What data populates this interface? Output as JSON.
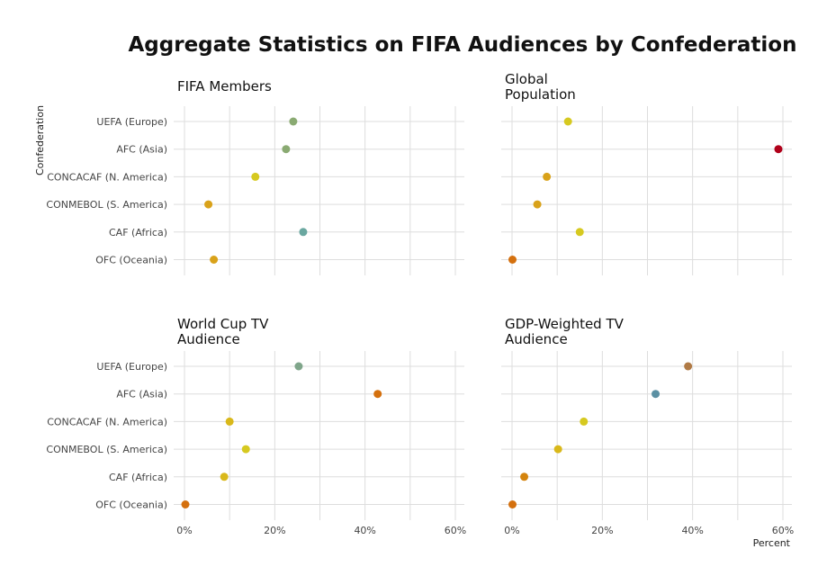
{
  "chart_data": {
    "type": "scatter",
    "title": "Aggregate Statistics on FIFA Audiences by Confederation",
    "ylabel": "Confederation",
    "xlabel": "Percent",
    "categories": [
      "UEFA (Europe)",
      "AFC (Asia)",
      "CONCACAF (N. America)",
      "CONMEBOL (S. America)",
      "CAF (Africa)",
      "OFC (Oceania)"
    ],
    "xlim": [
      0,
      60
    ],
    "x_ticks": [
      "0%",
      "20%",
      "40%",
      "60%"
    ],
    "x_tick_values": [
      0,
      20,
      40,
      60
    ],
    "grid": true,
    "color_scale": {
      "low": "#d4700e",
      "mid": "#d9c80e",
      "high": "#6aa7a0",
      "max": "#b0001a"
    },
    "facets": [
      {
        "name": "FIFA Members",
        "values": [
          24.1,
          22.5,
          15.7,
          5.3,
          26.3,
          6.5
        ],
        "colors": [
          "#8aaa72",
          "#8aaa72",
          "#d6c920",
          "#d9a21a",
          "#6aa7a0",
          "#d9a21a"
        ]
      },
      {
        "name": "Global\nPopulation",
        "values": [
          12.4,
          59.0,
          7.7,
          5.6,
          15.0,
          0.1
        ],
        "colors": [
          "#d6c920",
          "#b0001a",
          "#d9a21a",
          "#d9a21a",
          "#d6c920",
          "#d4700e"
        ]
      },
      {
        "name": "World Cup TV\nAudience",
        "values": [
          25.3,
          42.8,
          10.0,
          13.6,
          8.8,
          0.2
        ],
        "colors": [
          "#7fa58a",
          "#d4700e",
          "#d9b81a",
          "#d6c920",
          "#d9b81a",
          "#d4700e"
        ]
      },
      {
        "name": "GDP-Weighted TV\nAudience",
        "values": [
          39.0,
          31.8,
          15.9,
          10.2,
          2.7,
          0.1
        ],
        "colors": [
          "#b07a45",
          "#5b90a3",
          "#d6c920",
          "#d9b81a",
          "#d4840e",
          "#d4700e"
        ]
      }
    ]
  }
}
